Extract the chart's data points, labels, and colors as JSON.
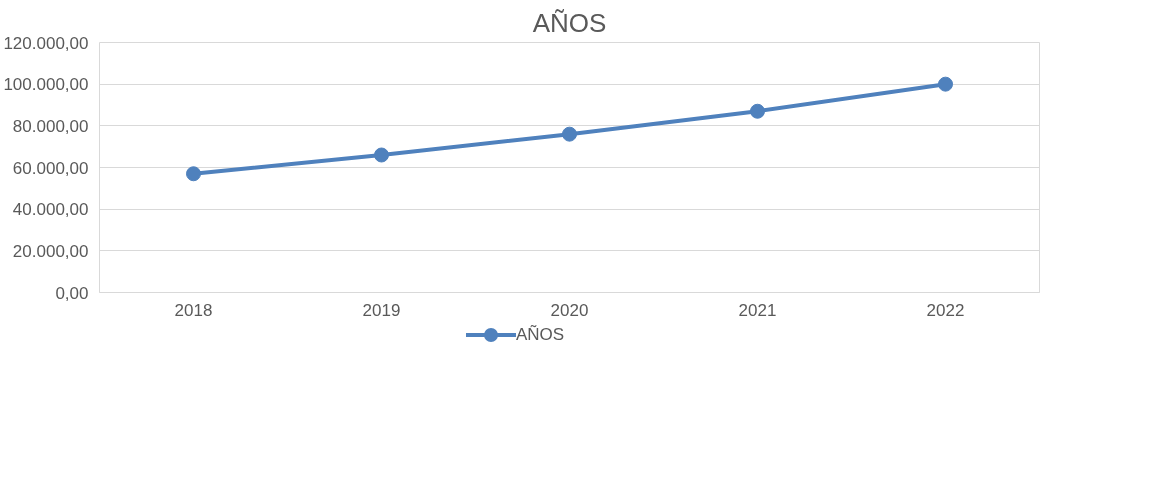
{
  "chart_data": {
    "type": "line",
    "title": "AÑOS",
    "categories": [
      "2018",
      "2019",
      "2020",
      "2021",
      "2022"
    ],
    "series": [
      {
        "name": "AÑOS",
        "color": "#4f81bd",
        "values": [
          57000,
          66000,
          76000,
          87000,
          100000
        ]
      }
    ],
    "ylim": [
      0,
      120000
    ],
    "yticks": [
      {
        "value": 0,
        "label": "0,00"
      },
      {
        "value": 20000,
        "label": "20.000,00"
      },
      {
        "value": 40000,
        "label": "40.000,00"
      },
      {
        "value": 60000,
        "label": "60.000,00"
      },
      {
        "value": 80000,
        "label": "80.000,00"
      },
      {
        "value": 100000,
        "label": "100.000,00"
      },
      {
        "value": 120000,
        "label": "120.000,00"
      }
    ],
    "grid": "y",
    "legend": "bottom",
    "marker": "circle",
    "line_style": "solid"
  }
}
